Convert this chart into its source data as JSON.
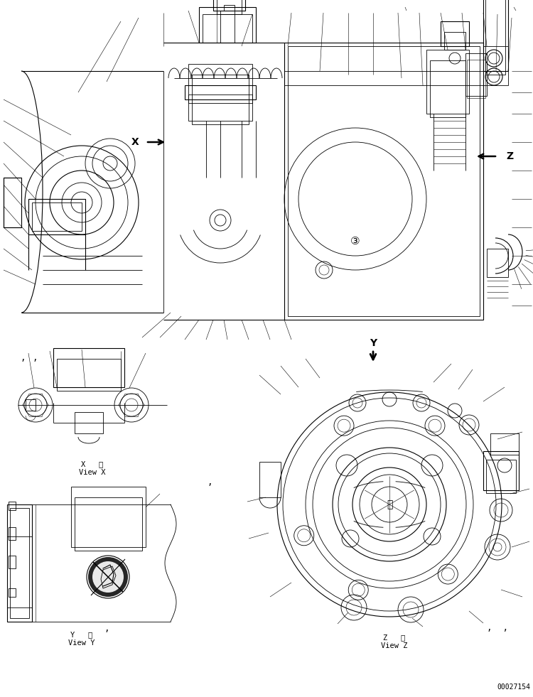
{
  "bg_color": "#ffffff",
  "line_color": "#000000",
  "fig_width": 7.5,
  "fig_height": 9.81,
  "dpi": 100,
  "part_number": "00027154",
  "view_x_label1": "X   視",
  "view_x_label2": "View X",
  "view_y_label1": "Y   視",
  "view_y_label2": "View Y",
  "view_z_label1": "Z   視",
  "view_z_label2": "View Z",
  "label_x": "X",
  "label_z": "Z",
  "label_y": "Y",
  "font_size_label": 10,
  "font_size_view": 7.5,
  "font_size_pn": 7
}
